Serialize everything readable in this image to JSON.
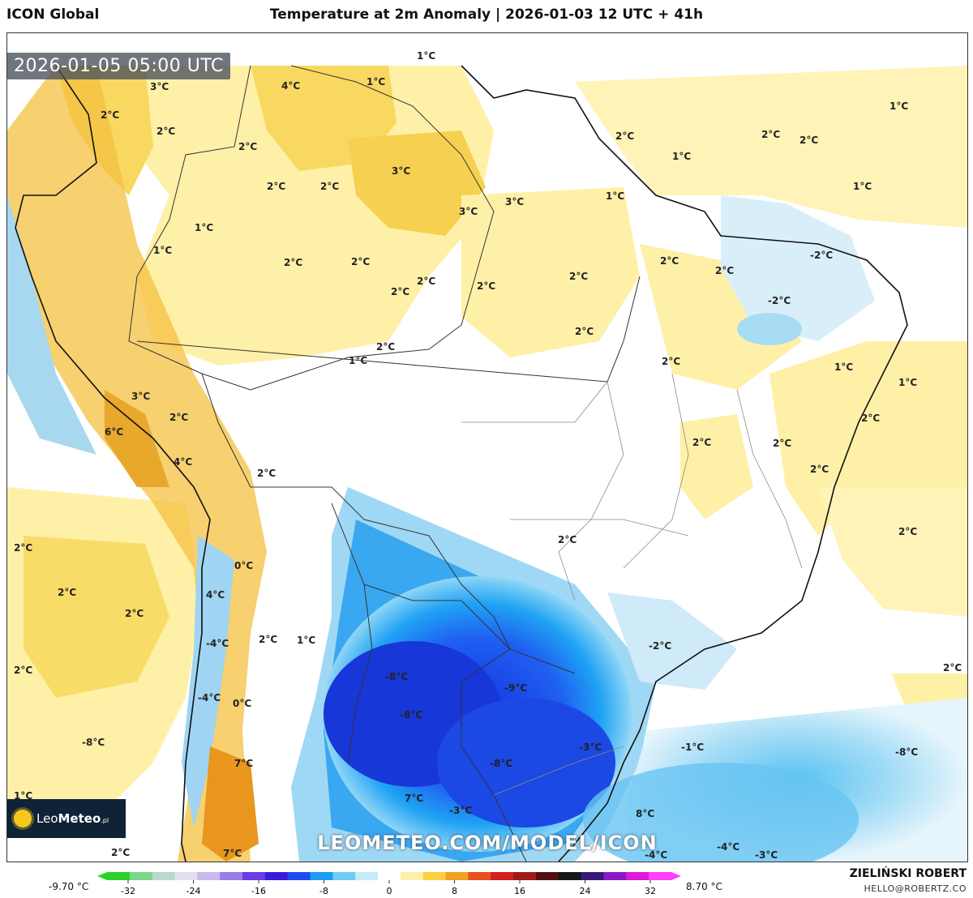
{
  "header": {
    "app_title": "ICON Global",
    "map_title": "Temperature at 2m Anomaly | 2026-01-03 12 UTC + 41h"
  },
  "valid_time": "2026-01-05 05:00 UTC",
  "watermark": "LEOMETEO.COM/MODEL/ICON",
  "logo": {
    "prefix": "Leo",
    "bold": "Meteo",
    "suffix": ".pl",
    "icon": "sun-icon"
  },
  "footer": {
    "author": "ZIELIŃSKI ROBERT",
    "email": "HELLO@ROBERTZ.CO"
  },
  "colorbar": {
    "min_label": "-9.70 °C",
    "max_label": "8.70 °C",
    "ticks": [
      "-32",
      "-24",
      "-16",
      "-8",
      "0",
      "8",
      "16",
      "24",
      "32"
    ],
    "colors": [
      "#2bd12b",
      "#78d888",
      "#b8d8d0",
      "#e0e0ee",
      "#c8b8ec",
      "#9a7ce8",
      "#6a3ce4",
      "#3a1cd8",
      "#1c4cf0",
      "#1c9cf4",
      "#6cccf4",
      "#c4ecf8",
      "#ffffff",
      "#fff0a8",
      "#f8d040",
      "#f0a020",
      "#e85020",
      "#d02020",
      "#a01818",
      "#501010",
      "#181818",
      "#3a1878",
      "#8a18c8",
      "#e018d8",
      "#ff40ff"
    ]
  },
  "map_labels": [
    {
      "t": "1°C"
    },
    {
      "t": "4°C"
    },
    {
      "t": "1°C"
    },
    {
      "t": "3°C"
    },
    {
      "t": "2°C"
    },
    {
      "t": "2°C"
    },
    {
      "t": "2°C"
    },
    {
      "t": "3°C"
    },
    {
      "t": "2°C"
    },
    {
      "t": "2°C"
    },
    {
      "t": "1°C"
    },
    {
      "t": "3°C"
    },
    {
      "t": "3°C"
    },
    {
      "t": "1°C"
    },
    {
      "t": "2°C"
    },
    {
      "t": "2°C"
    },
    {
      "t": "2°C"
    },
    {
      "t": "2°C"
    },
    {
      "t": "2°C"
    },
    {
      "t": "1°C"
    },
    {
      "t": "2°C"
    },
    {
      "t": "2°C"
    },
    {
      "t": "2°C"
    },
    {
      "t": "-2°C"
    },
    {
      "t": "2°C"
    },
    {
      "t": "2°C"
    },
    {
      "t": "-2°C"
    },
    {
      "t": "2°C"
    },
    {
      "t": "2°C"
    },
    {
      "t": "1°C"
    },
    {
      "t": "1°C"
    },
    {
      "t": "1°C"
    },
    {
      "t": "2°C"
    },
    {
      "t": "3°C"
    },
    {
      "t": "2°C"
    },
    {
      "t": "6°C"
    },
    {
      "t": "2°C"
    },
    {
      "t": "4°C"
    },
    {
      "t": "2°C"
    },
    {
      "t": "2°C"
    },
    {
      "t": "2°C"
    },
    {
      "t": "1°C"
    },
    {
      "t": "2°C"
    },
    {
      "t": "2°C"
    },
    {
      "t": "1°C"
    },
    {
      "t": "1°C"
    },
    {
      "t": "2°C"
    },
    {
      "t": "2°C"
    },
    {
      "t": "0°C"
    },
    {
      "t": "2°C"
    },
    {
      "t": "4°C"
    },
    {
      "t": "2°C"
    },
    {
      "t": "2°C"
    },
    {
      "t": "-4°C"
    },
    {
      "t": "1°C"
    },
    {
      "t": "2°C"
    },
    {
      "t": "2°C"
    },
    {
      "t": "-8°C"
    },
    {
      "t": "-9°C"
    },
    {
      "t": "-2°C"
    },
    {
      "t": "-8°C"
    },
    {
      "t": "0°C"
    },
    {
      "t": "-4°C"
    },
    {
      "t": "2°C"
    },
    {
      "t": "-8°C"
    },
    {
      "t": "-8°C"
    },
    {
      "t": "-3°C"
    },
    {
      "t": "-1°C"
    },
    {
      "t": "7°C"
    },
    {
      "t": "-8°C"
    },
    {
      "t": "7°C"
    },
    {
      "t": "1°C"
    },
    {
      "t": "-3°C"
    },
    {
      "t": "8°C"
    },
    {
      "t": "-4°C"
    },
    {
      "t": "2°C"
    },
    {
      "t": "7°C"
    },
    {
      "t": "-4°C"
    },
    {
      "t": "-3°C"
    }
  ]
}
